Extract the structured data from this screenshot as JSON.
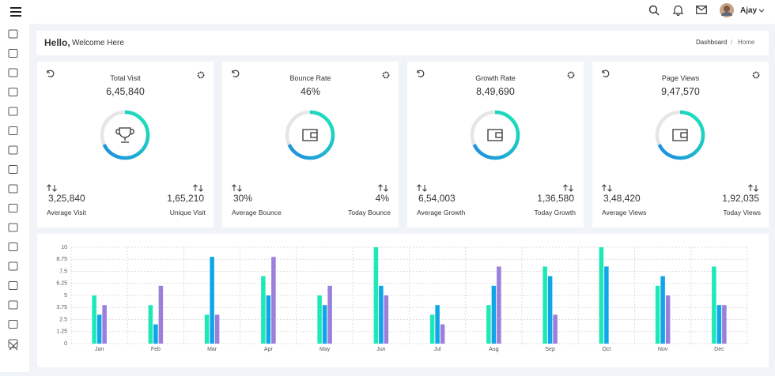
{
  "header": {
    "user": "Ajay"
  },
  "breadcrumb": {
    "greeting": "Hello,",
    "welcome": "Welcome Here",
    "items": [
      "Dashboard",
      "Home"
    ],
    "separator": "/"
  },
  "cards": [
    {
      "title": "Total Visit",
      "value": "6,45,840",
      "left_value": "3,25,840",
      "left_label": "Average Visit",
      "right_value": "1,65,210",
      "right_label": "Unique Visit"
    },
    {
      "title": "Bounce Rate",
      "value": "46%",
      "left_value": "30%",
      "left_label": "Average Bounce",
      "right_value": "4%",
      "right_label": "Today Bounce"
    },
    {
      "title": "Growth Rate",
      "value": "8,49,690",
      "left_value": "6,54,003",
      "left_label": "Average Growth",
      "right_value": "1,36,580",
      "right_label": "Today Growth"
    },
    {
      "title": "Page Views",
      "value": "9,47,570",
      "left_value": "3,48,420",
      "left_label": "Average Views",
      "right_value": "1,92,035",
      "right_label": "Today Views"
    }
  ],
  "chart_data": {
    "type": "bar",
    "categories": [
      "Jan",
      "Feb",
      "Mar",
      "Apr",
      "May",
      "Jun",
      "Jul",
      "Aug",
      "Sep",
      "Oct",
      "Nov",
      "Dec"
    ],
    "series": [
      {
        "color": "#1de9b6",
        "values": [
          5,
          4,
          3,
          7,
          5,
          10,
          3,
          4,
          8,
          10,
          6,
          8
        ]
      },
      {
        "color": "#0ea5e9",
        "values": [
          3,
          2,
          9,
          5,
          4,
          6,
          4,
          6,
          7,
          8,
          7,
          4
        ]
      },
      {
        "color": "#9b7fdc",
        "values": [
          4,
          6,
          3,
          9,
          6,
          5,
          2,
          8,
          3,
          0,
          5,
          4
        ]
      }
    ],
    "ylim": [
      0,
      10
    ],
    "yticks": [
      0,
      1.25,
      2.5,
      3.75,
      5,
      6.25,
      7.5,
      8.75,
      10
    ],
    "grid": true
  }
}
